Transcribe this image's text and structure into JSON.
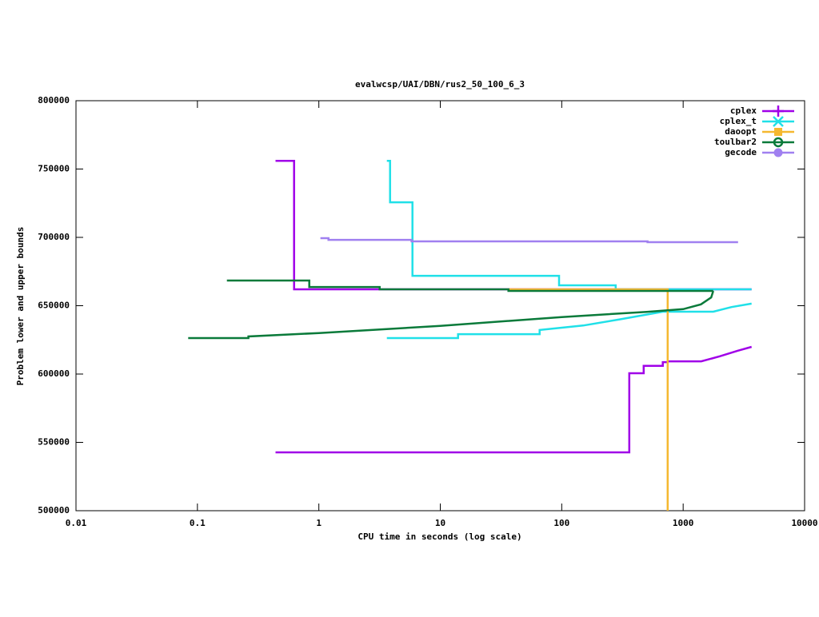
{
  "chart_data": {
    "type": "line",
    "title": "evalwcsp/UAI/DBN/rus2_50_100_6_3",
    "xlabel": "CPU time in seconds (log scale)",
    "ylabel": "Problem lower and upper bounds",
    "xscale": "log",
    "xlim": [
      0.01,
      10000
    ],
    "xticks": [
      0.01,
      0.1,
      1,
      10,
      100,
      1000,
      10000
    ],
    "ylim": [
      500000,
      800000
    ],
    "yticks": [
      500000,
      550000,
      600000,
      650000,
      700000,
      750000,
      800000
    ],
    "legend": "top-right",
    "series": [
      {
        "name": "cplex",
        "color": "#a000e8",
        "marker": "plus",
        "x": [
          0.44,
          0.625,
          0.625,
          3660,
          null,
          0.44,
          360,
          360,
          473,
          473,
          680,
          680,
          745,
          745,
          1410,
          2000,
          2800,
          3660
        ],
        "values": [
          756000,
          756000,
          662000,
          662000,
          null,
          542700,
          542700,
          600600,
          600600,
          606000,
          606000,
          608700,
          608700,
          609300,
          609300,
          613000,
          617000,
          619900
        ]
      },
      {
        "name": "cplex_t",
        "color": "#20e0e8",
        "marker": "cross",
        "x": [
          3.63,
          3.86,
          3.86,
          5.9,
          5.9,
          95,
          95,
          278,
          278,
          3660,
          null,
          3.63,
          14,
          14,
          65.8,
          65.8,
          150,
          300,
          680,
          1770,
          2500,
          3660
        ],
        "values": [
          756000,
          756000,
          725700,
          725700,
          671900,
          671900,
          664900,
          664900,
          662000,
          662000,
          null,
          626300,
          626300,
          629200,
          629200,
          632200,
          635500,
          640000,
          645600,
          645600,
          649000,
          651500
        ]
      },
      {
        "name": "daoopt",
        "color": "#f5b830",
        "marker": "square",
        "x": [
          36.4,
          745,
          745
        ],
        "values": [
          662000,
          662000,
          500000
        ]
      },
      {
        "name": "toulbar2",
        "color": "#0a7a3a",
        "marker": "circle",
        "x": [
          0.175,
          0.834,
          0.834,
          3.17,
          3.17,
          36.4,
          36.4,
          1770,
          null,
          0.084,
          0.263,
          0.263,
          1,
          10,
          100,
          500,
          1000,
          1400,
          1700,
          1770
        ],
        "values": [
          668400,
          668400,
          663700,
          663700,
          662000,
          662000,
          660800,
          660800,
          null,
          626300,
          626300,
          627500,
          630000,
          635200,
          641700,
          645500,
          647500,
          651000,
          656000,
          660800
        ]
      },
      {
        "name": "gecode",
        "color": "#a080f0",
        "marker": "dot",
        "x": [
          1.03,
          1.2,
          1.2,
          5.8,
          5.8,
          509,
          509,
          2830
        ],
        "values": [
          699400,
          699400,
          698200,
          698200,
          697100,
          697100,
          696500,
          696500
        ]
      }
    ]
  }
}
